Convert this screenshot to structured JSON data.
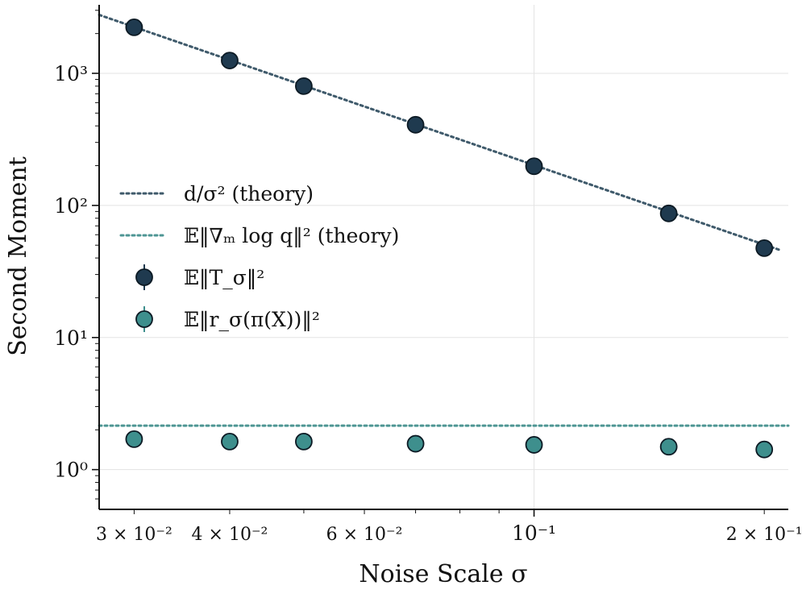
{
  "chart_data": {
    "type": "scatter",
    "xlabel": "Noise Scale σ",
    "ylabel": "Second Moment",
    "x_scale": "log",
    "y_scale": "log",
    "xlim": [
      0.027,
      0.215
    ],
    "ylim": [
      0.5,
      3300
    ],
    "grid": true,
    "legend_position": "center-left",
    "x_ticks": [
      {
        "value": 0.03,
        "label": "3 × 10⁻²"
      },
      {
        "value": 0.04,
        "label": "4 × 10⁻²"
      },
      {
        "value": 0.06,
        "label": "6 × 10⁻²"
      },
      {
        "value": 0.1,
        "label": "10⁻¹"
      },
      {
        "value": 0.2,
        "label": "2 × 10⁻¹"
      }
    ],
    "y_ticks": [
      {
        "value": 1,
        "label": "10⁰"
      },
      {
        "value": 10,
        "label": "10¹"
      },
      {
        "value": 100,
        "label": "10²"
      },
      {
        "value": 1000,
        "label": "10³"
      }
    ],
    "series": [
      {
        "name": "d/σ² (theory)",
        "kind": "line",
        "style": "dotted",
        "color": "#3f5a6b",
        "x": [
          0.027,
          0.21
        ],
        "y": [
          2770,
          45.8
        ]
      },
      {
        "name": "𝔼‖∇ₘ log q‖² (theory)",
        "kind": "line",
        "style": "dotted",
        "color": "#4e9694",
        "x": [
          0.027,
          0.215
        ],
        "y": [
          2.15,
          2.15
        ]
      },
      {
        "name": "𝔼‖T_σ‖²",
        "kind": "scatter",
        "color": "#1f3a4f",
        "x": [
          0.03,
          0.04,
          0.05,
          0.07,
          0.1,
          0.15,
          0.2
        ],
        "y": [
          2230,
          1250,
          800,
          408,
          198,
          87,
          47.5
        ]
      },
      {
        "name": "𝔼‖r_σ(π(X))‖²",
        "kind": "scatter",
        "color": "#3e8f8d",
        "x": [
          0.03,
          0.04,
          0.05,
          0.07,
          0.1,
          0.15,
          0.2
        ],
        "y": [
          1.7,
          1.63,
          1.63,
          1.57,
          1.54,
          1.49,
          1.42
        ]
      }
    ]
  }
}
